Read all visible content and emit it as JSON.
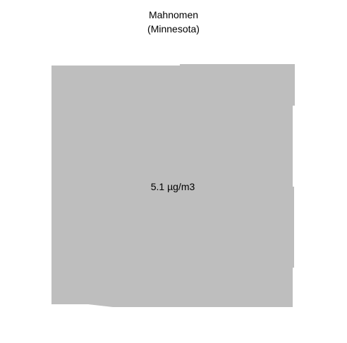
{
  "map": {
    "title_line1": "Mahnomen",
    "title_line2": "(Minnesota)",
    "value_label": "5.1 µg/m3",
    "value": 5.1,
    "unit": "µg/m3",
    "fill_color": "#bebebe",
    "background_color": "#ffffff"
  }
}
